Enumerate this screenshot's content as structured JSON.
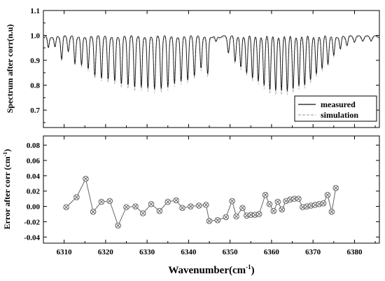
{
  "chart_data": [
    {
      "type": "line",
      "title": "",
      "xlabel": "",
      "ylabel": "Spectrum after corr(n.u)",
      "xlim": [
        6305,
        6386
      ],
      "ylim": [
        0.63,
        1.1
      ],
      "yticks": [
        "0.7",
        "0.8",
        "0.9",
        "1.0",
        "1.1"
      ],
      "legend_placement": "bottom-right",
      "series": [
        {
          "name": "measured",
          "style": "solid",
          "color": "#111111",
          "baseline": 0.995
        },
        {
          "name": "simulation",
          "style": "dashed",
          "color": "#aaaaaa",
          "baseline": 0.99
        }
      ],
      "absorption_lines": [
        [
          6306.2,
          0.945
        ],
        [
          6307.8,
          0.948
        ],
        [
          6309.4,
          0.9
        ],
        [
          6311.0,
          0.935
        ],
        [
          6312.6,
          0.88
        ],
        [
          6314.2,
          0.87
        ],
        [
          6315.8,
          0.855
        ],
        [
          6317.4,
          0.83
        ],
        [
          6319.0,
          0.82
        ],
        [
          6320.6,
          0.81
        ],
        [
          6322.2,
          0.8
        ],
        [
          6323.8,
          0.79
        ],
        [
          6325.4,
          0.79
        ],
        [
          6327.0,
          0.78
        ],
        [
          6328.6,
          0.775
        ],
        [
          6330.2,
          0.77
        ],
        [
          6331.8,
          0.77
        ],
        [
          6333.4,
          0.775
        ],
        [
          6335.0,
          0.78
        ],
        [
          6336.6,
          0.79
        ],
        [
          6338.2,
          0.8
        ],
        [
          6339.8,
          0.81
        ],
        [
          6341.4,
          0.83
        ],
        [
          6343.0,
          0.86
        ],
        [
          6344.6,
          0.83
        ],
        [
          6346.6,
          0.97
        ],
        [
          6349.6,
          0.93
        ],
        [
          6351.2,
          0.89
        ],
        [
          6352.6,
          0.86
        ],
        [
          6354.0,
          0.84
        ],
        [
          6355.4,
          0.82
        ],
        [
          6356.8,
          0.8
        ],
        [
          6358.2,
          0.785
        ],
        [
          6359.6,
          0.77
        ],
        [
          6361.0,
          0.76
        ],
        [
          6362.4,
          0.76
        ],
        [
          6363.8,
          0.765
        ],
        [
          6365.2,
          0.77
        ],
        [
          6366.6,
          0.78
        ],
        [
          6368.0,
          0.79
        ],
        [
          6369.4,
          0.81
        ],
        [
          6370.8,
          0.83
        ],
        [
          6372.2,
          0.86
        ],
        [
          6373.6,
          0.88
        ],
        [
          6375.0,
          0.91
        ],
        [
          6376.6,
          0.94
        ],
        [
          6378.2,
          0.96
        ],
        [
          6380.0,
          0.975
        ],
        [
          6382.0,
          0.98
        ],
        [
          6384.0,
          0.98
        ]
      ]
    },
    {
      "type": "line",
      "title": "",
      "xlabel": "Wavenumber(cm",
      "xlabel_sup": "-1",
      "xlabel_end": ")",
      "ylabel": "Error after corr (cm",
      "ylabel_sup": "-1",
      "ylabel_end": ")",
      "xlim": [
        6305,
        6386
      ],
      "ylim": [
        -0.048,
        0.092
      ],
      "xticks": [
        "6310",
        "6320",
        "6330",
        "6340",
        "6350",
        "6360",
        "6370",
        "6380"
      ],
      "yticks": [
        "-0.04",
        "-0.02",
        "0.00",
        "0.02",
        "0.04",
        "0.06",
        "0.08"
      ],
      "marker": "crossed-circle",
      "color": "#666666",
      "x": [
        6310.5,
        6313,
        6315.2,
        6317,
        6319,
        6321,
        6323,
        6325,
        6327.2,
        6329,
        6331,
        6333,
        6335,
        6337,
        6338.5,
        6340.5,
        6342.5,
        6344.2,
        6345,
        6347,
        6349,
        6350.5,
        6351.5,
        6353,
        6354,
        6355,
        6356,
        6357,
        6358.5,
        6359.5,
        6360.5,
        6361.5,
        6362.5,
        6363.5,
        6364.5,
        6365.5,
        6366.5,
        6367.5,
        6368.5,
        6369.5,
        6370.5,
        6371.5,
        6372.5,
        6373.5,
        6374.5,
        6375.5
      ],
      "y": [
        -0.001,
        0.012,
        0.036,
        -0.007,
        0.006,
        0.007,
        -0.025,
        -0.001,
        0.0,
        -0.009,
        0.003,
        -0.006,
        0.006,
        0.008,
        -0.002,
        0.0,
        0.001,
        0.002,
        -0.019,
        -0.018,
        -0.014,
        0.007,
        -0.013,
        -0.002,
        -0.012,
        -0.011,
        -0.011,
        -0.01,
        0.015,
        0.003,
        -0.006,
        0.006,
        -0.004,
        0.007,
        0.009,
        0.01,
        0.01,
        -0.001,
        0.0,
        0.001,
        0.002,
        0.003,
        0.004,
        0.015,
        -0.007,
        0.024
      ]
    }
  ]
}
